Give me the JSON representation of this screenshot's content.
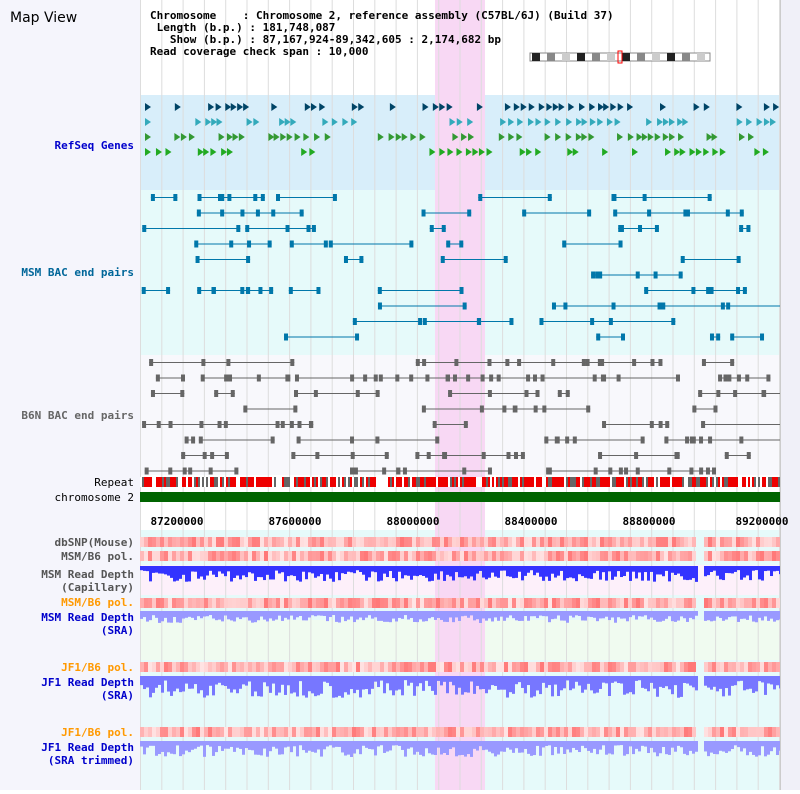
{
  "title": "Map View",
  "info": {
    "chromosome": "Chromosome    : Chromosome 2, reference assembly (C57BL/6J) (Build 37)",
    "length": " Length (b.p.) : 181,748,087",
    "show": "   Show (b.p.) : 87,167,924-89,342,605 : 2,174,682 bp",
    "span": "Read coverage check span : 10,000"
  },
  "tracks": {
    "refseq": "RefSeq Genes",
    "msm_bac": "MSM BAC end pairs",
    "b6n_bac": "B6N BAC end pairs",
    "repeat": "Repeat",
    "chrom": "chromosome 2",
    "dbsnp": "dbSNP(Mouse)",
    "msm_pol1": "MSM/B6 pol.",
    "msm_cap": "MSM Read Depth\n(Capillary)",
    "msm_pol2": "MSM/B6 pol.",
    "msm_sra": "MSM Read Depth\n(SRA)",
    "jf1_pol1": "JF1/B6 pol.",
    "jf1_sra": "JF1 Read Depth\n(SRA)",
    "jf1_pol2": "JF1/B6 pol.",
    "jf1_trim": "JF1 Read Depth\n(SRA trimmed)"
  },
  "axis_ticks": [
    "87200000",
    "87600000",
    "88000000",
    "88400000",
    "88800000",
    "89200000"
  ],
  "colors": {
    "highlight": "#f8d8f4",
    "genes_bg": "#d8eefa",
    "msm_bg": "#e6fafa",
    "green": "#006400",
    "orange": "#ff9900",
    "blue": "#0000cc"
  }
}
